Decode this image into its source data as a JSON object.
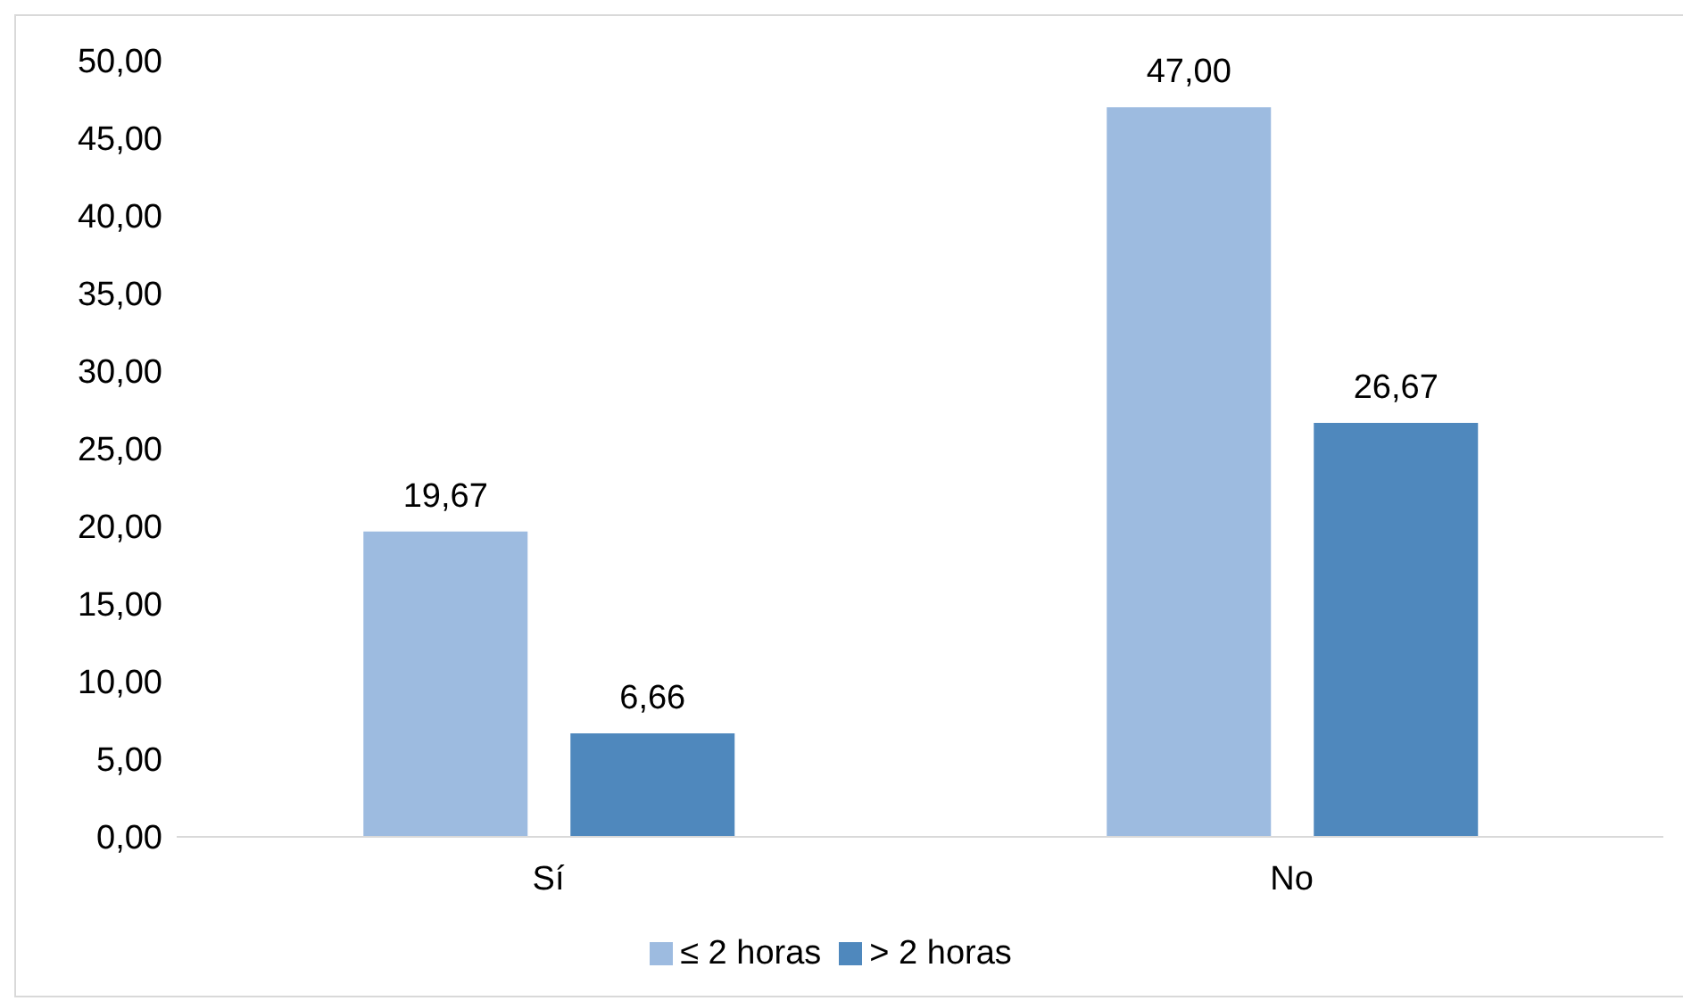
{
  "chart_data": {
    "type": "bar",
    "categories": [
      "Sí",
      "No"
    ],
    "series": [
      {
        "name": "≤ 2 horas",
        "color": "#9dbbe0",
        "values": [
          19.67,
          47.0
        ],
        "value_labels": [
          "19,67",
          "47,00"
        ]
      },
      {
        "name": "> 2 horas",
        "color": "#4f88bd",
        "values": [
          6.66,
          26.67
        ],
        "value_labels": [
          "6,66",
          "26,67"
        ]
      }
    ],
    "ylim": [
      0,
      50
    ],
    "yticks": [
      {
        "value": 0,
        "label": "0,00"
      },
      {
        "value": 5,
        "label": "5,00"
      },
      {
        "value": 10,
        "label": "10,00"
      },
      {
        "value": 15,
        "label": "15,00"
      },
      {
        "value": 20,
        "label": "20,00"
      },
      {
        "value": 25,
        "label": "25,00"
      },
      {
        "value": 30,
        "label": "30,00"
      },
      {
        "value": 35,
        "label": "35,00"
      },
      {
        "value": 40,
        "label": "40,00"
      },
      {
        "value": 45,
        "label": "45,00"
      },
      {
        "value": 50,
        "label": "50,00"
      }
    ],
    "grid": false,
    "legend": "bottom"
  }
}
